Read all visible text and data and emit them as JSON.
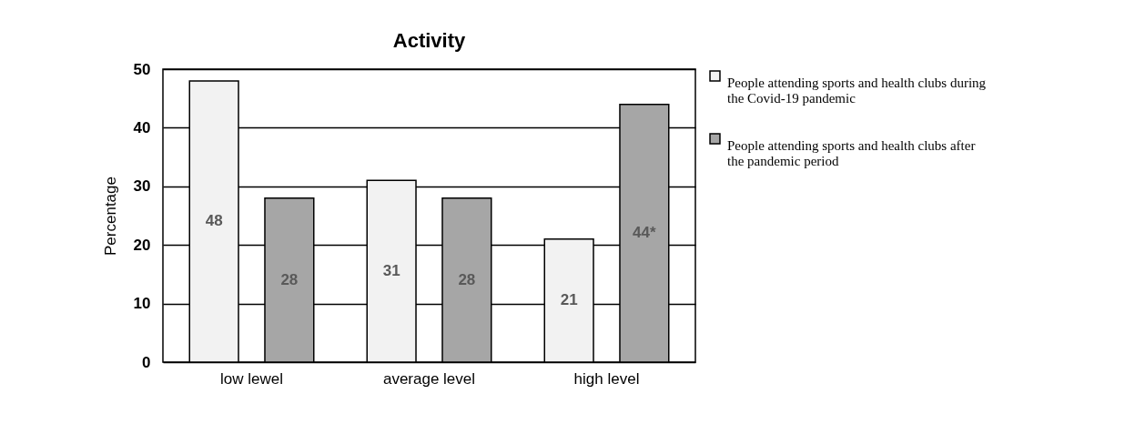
{
  "chart_data": {
    "type": "bar",
    "title": "Activity",
    "ylabel": "Percentage",
    "categories": [
      "low lewel",
      "average level",
      "high level"
    ],
    "series": [
      {
        "name": "People attending sports and health clubs during the Covid-19 pandemic",
        "color": "#f2f2f2",
        "values": [
          48,
          31,
          21
        ],
        "value_labels": [
          "48",
          "31",
          "21"
        ]
      },
      {
        "name": "People attending sports and health clubs after the pandemic period",
        "color": "#a6a6a6",
        "values": [
          28,
          28,
          44
        ],
        "value_labels": [
          "28",
          "28",
          "44*"
        ]
      }
    ],
    "ylim": [
      0,
      50
    ],
    "yticks": [
      0,
      10,
      20,
      30,
      40,
      50
    ],
    "grid": "y",
    "legend": "top right"
  }
}
